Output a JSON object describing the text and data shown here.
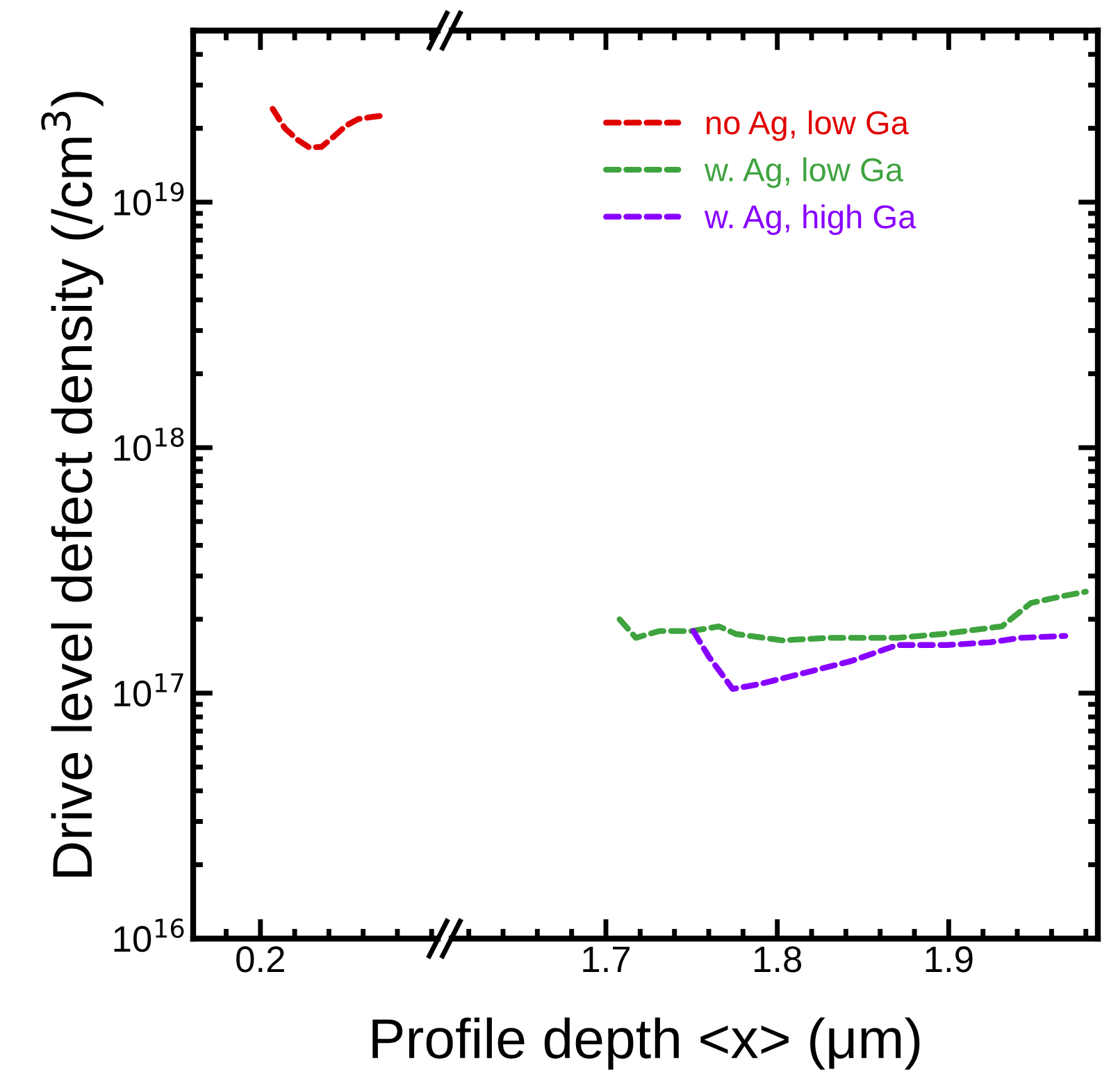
{
  "chart_data": [
    {
      "type": "line",
      "xlabel": "Profile depth <x> (μm)",
      "ylabel": "Drive level defect density (/cm$^{3}$)",
      "log": "y",
      "categories": [
        null,
        null,
        null,
        null,
        null,
        null,
        null,
        null,
        null,
        null,
        null,
        null,
        null,
        null,
        null,
        null,
        null,
        null,
        null,
        null
      ],
      "annotations": [
        "0.2"
      ],
      "ylim": [
        1e+16,
        5e+19
      ],
      "yticks": [
        {
          "value": 1e+16,
          "label": "10$^{16}$"
        },
        {
          "value": 1e+17,
          "label": "10$^{17}$"
        },
        {
          "value": 1e+18,
          "label": "10$^{18}$"
        },
        {
          "value": 1e+19,
          "label": "10$^{19}$"
        }
      ],
      "line_style": "dashed",
      "grid": false,
      "series": [
        {
          "name": "no Ag, low Ga",
          "color": "#e00000",
          "values": [
            null,
            null,
            null,
            null,
            null,
            null,
            2.4e+19,
            2e+19,
            1.8e+19,
            1.67e+19,
            1.68e+19,
            1.85e+19,
            2.05e+19,
            2.18e+19,
            2.22e+19,
            2.25e+19,
            null,
            null,
            null,
            null
          ]
        }
      ]
    },
    {
      "type": "line",
      "log": "y",
      "xlim": [
        1.61,
        1.987
      ],
      "xticks": [
        {
          "value": 1.62,
          "label": null
        },
        {
          "value": 1.64,
          "label": null
        },
        {
          "value": 1.66,
          "label": null
        },
        {
          "value": 1.68,
          "label": null
        },
        1.7,
        {
          "value": 1.72,
          "label": null
        },
        {
          "value": 1.74,
          "label": null
        },
        {
          "value": 1.76,
          "label": null
        },
        {
          "value": 1.78,
          "label": null
        },
        1.8,
        {
          "value": 1.82,
          "label": null
        },
        {
          "value": 1.84,
          "label": null
        },
        {
          "value": 1.86,
          "label": null
        },
        {
          "value": 1.88,
          "label": null
        },
        1.9,
        {
          "value": 1.92,
          "label": null
        },
        {
          "value": 1.94,
          "label": null
        },
        {
          "value": 1.96,
          "label": null
        },
        {
          "value": 1.98,
          "label": null
        }
      ],
      "ylim": [
        1e+16,
        5e+19
      ],
      "tick_labels": "x",
      "line_style": "dashed",
      "grid": false,
      "legend": "top right",
      "series": [
        {
          "name": "w. Ag, low Ga",
          "color": "#3fa33f",
          "x": [
            1.708,
            1.7175,
            1.731,
            1.75,
            1.766,
            1.776,
            1.803,
            1.83,
            1.87,
            1.896,
            1.931,
            1.948,
            1.966,
            1.98
          ],
          "values": [
            2e+17,
            1.68e+17,
            1.79e+17,
            1.79e+17,
            1.87e+17,
            1.74e+17,
            1.64e+17,
            1.68e+17,
            1.68e+17,
            1.74e+17,
            1.87e+17,
            2.33e+17,
            2.48e+17,
            2.59e+17
          ]
        },
        {
          "name": "w. Ag, high Ga",
          "color": "#8800ff",
          "x": [
            1.751,
            1.76,
            1.774,
            1.79,
            1.816,
            1.843,
            1.87,
            1.899,
            1.924,
            1.942,
            1.968
          ],
          "values": [
            1.79e+17,
            1.41e+17,
            1.04e+17,
            1.09e+17,
            1.21e+17,
            1.35e+17,
            1.57e+17,
            1.57e+17,
            1.61e+17,
            1.68e+17,
            1.71e+17
          ]
        }
      ]
    }
  ]
}
